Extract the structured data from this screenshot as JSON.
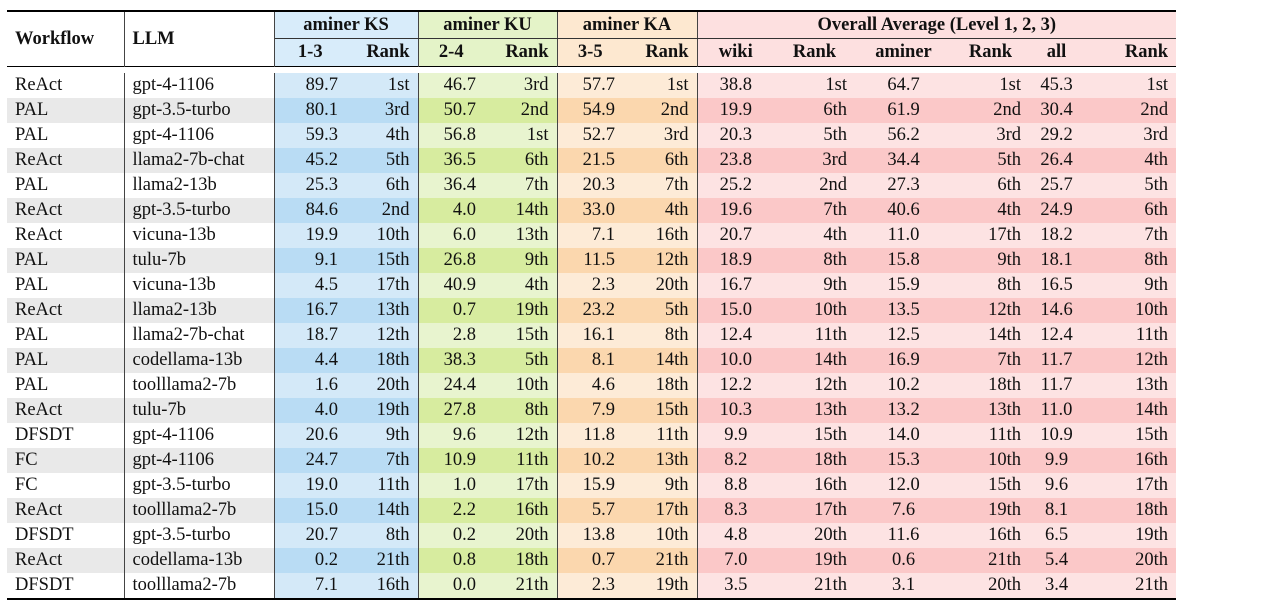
{
  "chart_data": {
    "type": "table",
    "header_groups": [
      {
        "label": "aminer KS",
        "span": 2
      },
      {
        "label": "aminer KU",
        "span": 2
      },
      {
        "label": "aminer KA",
        "span": 2
      },
      {
        "label": "Overall Average (Level 1, 2, 3)",
        "span": 6
      }
    ],
    "columns": [
      "Workflow",
      "LLM",
      "1-3",
      "Rank",
      "2-4",
      "Rank",
      "3-5",
      "Rank",
      "wiki",
      "Rank",
      "aminer",
      "Rank",
      "all",
      "Rank"
    ],
    "rows": [
      [
        "ReAct",
        "gpt-4-1106",
        "89.7",
        "1st",
        "46.7",
        "3rd",
        "57.7",
        "1st",
        "38.8",
        "1st",
        "64.7",
        "1st",
        "45.3",
        "1st"
      ],
      [
        "PAL",
        "gpt-3.5-turbo",
        "80.1",
        "3rd",
        "50.7",
        "2nd",
        "54.9",
        "2nd",
        "19.9",
        "6th",
        "61.9",
        "2nd",
        "30.4",
        "2nd"
      ],
      [
        "PAL",
        "gpt-4-1106",
        "59.3",
        "4th",
        "56.8",
        "1st",
        "52.7",
        "3rd",
        "20.3",
        "5th",
        "56.2",
        "3rd",
        "29.2",
        "3rd"
      ],
      [
        "ReAct",
        "llama2-7b-chat",
        "45.2",
        "5th",
        "36.5",
        "6th",
        "21.5",
        "6th",
        "23.8",
        "3rd",
        "34.4",
        "5th",
        "26.4",
        "4th"
      ],
      [
        "PAL",
        "llama2-13b",
        "25.3",
        "6th",
        "36.4",
        "7th",
        "20.3",
        "7th",
        "25.2",
        "2nd",
        "27.3",
        "6th",
        "25.7",
        "5th"
      ],
      [
        "ReAct",
        "gpt-3.5-turbo",
        "84.6",
        "2nd",
        "4.0",
        "14th",
        "33.0",
        "4th",
        "19.6",
        "7th",
        "40.6",
        "4th",
        "24.9",
        "6th"
      ],
      [
        "ReAct",
        "vicuna-13b",
        "19.9",
        "10th",
        "6.0",
        "13th",
        "7.1",
        "16th",
        "20.7",
        "4th",
        "11.0",
        "17th",
        "18.2",
        "7th"
      ],
      [
        "PAL",
        "tulu-7b",
        "9.1",
        "15th",
        "26.8",
        "9th",
        "11.5",
        "12th",
        "18.9",
        "8th",
        "15.8",
        "9th",
        "18.1",
        "8th"
      ],
      [
        "PAL",
        "vicuna-13b",
        "4.5",
        "17th",
        "40.9",
        "4th",
        "2.3",
        "20th",
        "16.7",
        "9th",
        "15.9",
        "8th",
        "16.5",
        "9th"
      ],
      [
        "ReAct",
        "llama2-13b",
        "16.7",
        "13th",
        "0.7",
        "19th",
        "23.2",
        "5th",
        "15.0",
        "10th",
        "13.5",
        "12th",
        "14.6",
        "10th"
      ],
      [
        "PAL",
        "llama2-7b-chat",
        "18.7",
        "12th",
        "2.8",
        "15th",
        "16.1",
        "8th",
        "12.4",
        "11th",
        "12.5",
        "14th",
        "12.4",
        "11th"
      ],
      [
        "PAL",
        "codellama-13b",
        "4.4",
        "18th",
        "38.3",
        "5th",
        "8.1",
        "14th",
        "10.0",
        "14th",
        "16.9",
        "7th",
        "11.7",
        "12th"
      ],
      [
        "PAL",
        "toolllama2-7b",
        "1.6",
        "20th",
        "24.4",
        "10th",
        "4.6",
        "18th",
        "12.2",
        "12th",
        "10.2",
        "18th",
        "11.7",
        "13th"
      ],
      [
        "ReAct",
        "tulu-7b",
        "4.0",
        "19th",
        "27.8",
        "8th",
        "7.9",
        "15th",
        "10.3",
        "13th",
        "13.2",
        "13th",
        "11.0",
        "14th"
      ],
      [
        "DFSDT",
        "gpt-4-1106",
        "20.6",
        "9th",
        "9.6",
        "12th",
        "11.8",
        "11th",
        "9.9",
        "15th",
        "14.0",
        "11th",
        "10.9",
        "15th"
      ],
      [
        "FC",
        "gpt-4-1106",
        "24.7",
        "7th",
        "10.9",
        "11th",
        "10.2",
        "13th",
        "8.2",
        "18th",
        "15.3",
        "10th",
        "9.9",
        "16th"
      ],
      [
        "FC",
        "gpt-3.5-turbo",
        "19.0",
        "11th",
        "1.0",
        "17th",
        "15.9",
        "9th",
        "8.8",
        "16th",
        "12.0",
        "15th",
        "9.6",
        "17th"
      ],
      [
        "ReAct",
        "toolllama2-7b",
        "15.0",
        "14th",
        "2.2",
        "16th",
        "5.7",
        "17th",
        "8.3",
        "17th",
        "7.6",
        "19th",
        "8.1",
        "18th"
      ],
      [
        "DFSDT",
        "gpt-3.5-turbo",
        "20.7",
        "8th",
        "0.2",
        "20th",
        "13.8",
        "10th",
        "4.8",
        "20th",
        "11.6",
        "16th",
        "6.5",
        "19th"
      ],
      [
        "ReAct",
        "codellama-13b",
        "0.2",
        "21th",
        "0.8",
        "18th",
        "0.7",
        "21th",
        "7.0",
        "19th",
        "0.6",
        "21th",
        "5.4",
        "20th"
      ],
      [
        "DFSDT",
        "toolllama2-7b",
        "7.1",
        "16th",
        "0.0",
        "21th",
        "2.3",
        "19th",
        "3.5",
        "21th",
        "3.1",
        "20th",
        "3.4",
        "21th"
      ]
    ],
    "colors": {
      "aminer_KS": "#b9dcf4",
      "aminer_KU": "#d7ec9f",
      "aminer_KA": "#fbd7ae",
      "overall": "#fbc8c8"
    }
  }
}
